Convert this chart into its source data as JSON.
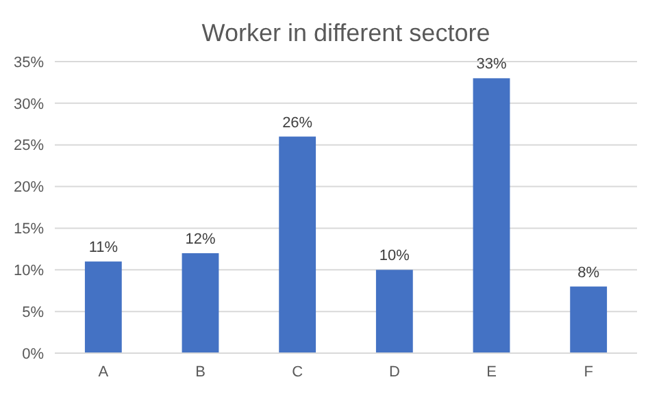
{
  "chart_data": {
    "type": "bar",
    "title": "Worker in different sectore",
    "categories": [
      "A",
      "B",
      "C",
      "D",
      "E",
      "F"
    ],
    "values": [
      11,
      12,
      26,
      10,
      33,
      8
    ],
    "value_labels": [
      "11%",
      "12%",
      "26%",
      "10%",
      "33%",
      "8%"
    ],
    "color": "#4472c4",
    "ylim": [
      0,
      35
    ],
    "yticks": [
      {
        "value": 0,
        "label": "0%"
      },
      {
        "value": 5,
        "label": "5%"
      },
      {
        "value": 10,
        "label": "10%"
      },
      {
        "value": 15,
        "label": "15%"
      },
      {
        "value": 20,
        "label": "20%"
      },
      {
        "value": 25,
        "label": "25%"
      },
      {
        "value": 30,
        "label": "30%"
      },
      {
        "value": 35,
        "label": "35%"
      }
    ],
    "grid": "y"
  }
}
